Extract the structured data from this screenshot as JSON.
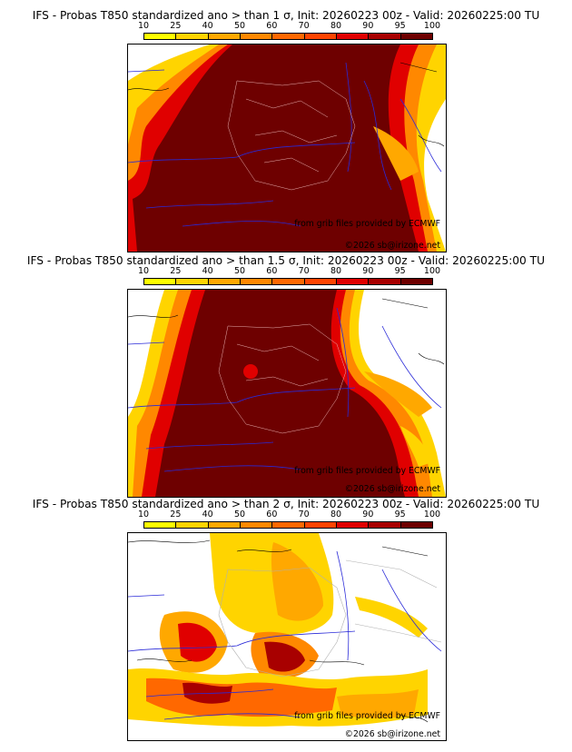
{
  "colorbar": {
    "labels": [
      "10",
      "25",
      "40",
      "50",
      "60",
      "70",
      "80",
      "90",
      "95",
      "100"
    ],
    "colors": [
      "#ffff00",
      "#ffd400",
      "#ffa800",
      "#ff8800",
      "#ff6800",
      "#ff4400",
      "#e00000",
      "#a80000",
      "#6e0000"
    ]
  },
  "panels": [
    {
      "title": "IFS - Probas T850  standardized ano > than 1 σ, Init: 20260223 00z - Valid: 20260225:00 TU",
      "credit": "from grib files provided by ECMWF",
      "copyright": "©2026 sb@irizone.net"
    },
    {
      "title": "IFS - Probas T850  standardized ano > than 1.5 σ, Init: 20260223 00z - Valid: 20260225:00 TU",
      "credit": "from grib files provided by ECMWF",
      "copyright": "©2026 sb@irizone.net"
    },
    {
      "title": "IFS - Probas T850  standardized ano > than 2 σ, Init: 20260223 00z - Valid: 20260225:00 TU",
      "credit": "from grib files provided by ECMWF",
      "copyright": "©2026 sb@irizone.net"
    }
  ]
}
